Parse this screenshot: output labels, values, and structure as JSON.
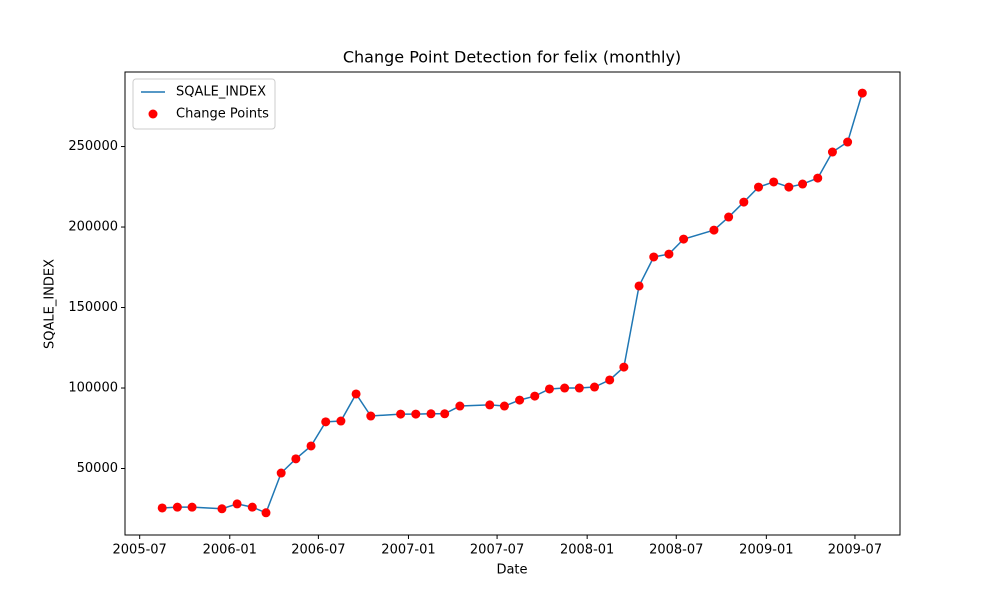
{
  "chart_data": {
    "type": "line",
    "title": "Change Point Detection for felix (monthly)",
    "x_label": "Date",
    "y_label": "SQALE_INDEX",
    "x": [
      "2005-08",
      "2005-09",
      "2005-10",
      "2005-12",
      "2006-01",
      "2006-02",
      "2006-03",
      "2006-04",
      "2006-05",
      "2006-06",
      "2006-07",
      "2006-08",
      "2006-09",
      "2006-10",
      "2006-12",
      "2007-01",
      "2007-02",
      "2007-03",
      "2007-04",
      "2007-06",
      "2007-07",
      "2007-08",
      "2007-09",
      "2007-10",
      "2007-11",
      "2007-12",
      "2008-01",
      "2008-02",
      "2008-03",
      "2008-04",
      "2008-05",
      "2008-06",
      "2008-07",
      "2008-09",
      "2008-10",
      "2008-11",
      "2008-12",
      "2009-01",
      "2009-02",
      "2009-03",
      "2009-04",
      "2009-05",
      "2009-06",
      "2009-07"
    ],
    "series": [
      {
        "name": "SQALE_INDEX",
        "kind": "line",
        "color": "#1f77b4",
        "values": [
          25500,
          26000,
          26000,
          25000,
          28000,
          26000,
          22500,
          47200,
          56000,
          64000,
          79000,
          79500,
          96300,
          82600,
          83800,
          83800,
          84000,
          84000,
          88800,
          89500,
          88800,
          92500,
          95000,
          99400,
          100000,
          100000,
          100600,
          105000,
          113000,
          163400,
          181400,
          183200,
          192500,
          198100,
          206200,
          215500,
          224800,
          228000,
          224800,
          226700,
          230400,
          246600,
          252800,
          283200
        ]
      },
      {
        "name": "Change Points",
        "kind": "scatter",
        "color": "#ff0000",
        "values": [
          25500,
          26000,
          26000,
          25000,
          28000,
          26000,
          22500,
          47200,
          56000,
          64000,
          79000,
          79500,
          96300,
          82600,
          83800,
          83800,
          84000,
          84000,
          88800,
          89500,
          88800,
          92500,
          95000,
          99400,
          100000,
          100000,
          100600,
          105000,
          113000,
          163400,
          181400,
          183200,
          192500,
          198100,
          206200,
          215500,
          224800,
          228000,
          224800,
          226700,
          230400,
          246600,
          252800,
          283200
        ]
      }
    ],
    "xlim": [
      "2005-06",
      "2009-10"
    ],
    "xticks": [
      "2005-07",
      "2006-01",
      "2006-07",
      "2007-01",
      "2007-07",
      "2008-01",
      "2008-07",
      "2009-01",
      "2009-07"
    ],
    "ylim": [
      8700,
      296300
    ],
    "yticks": [
      50000,
      100000,
      150000,
      200000,
      250000
    ],
    "legend": "upper left",
    "grid": false
  }
}
